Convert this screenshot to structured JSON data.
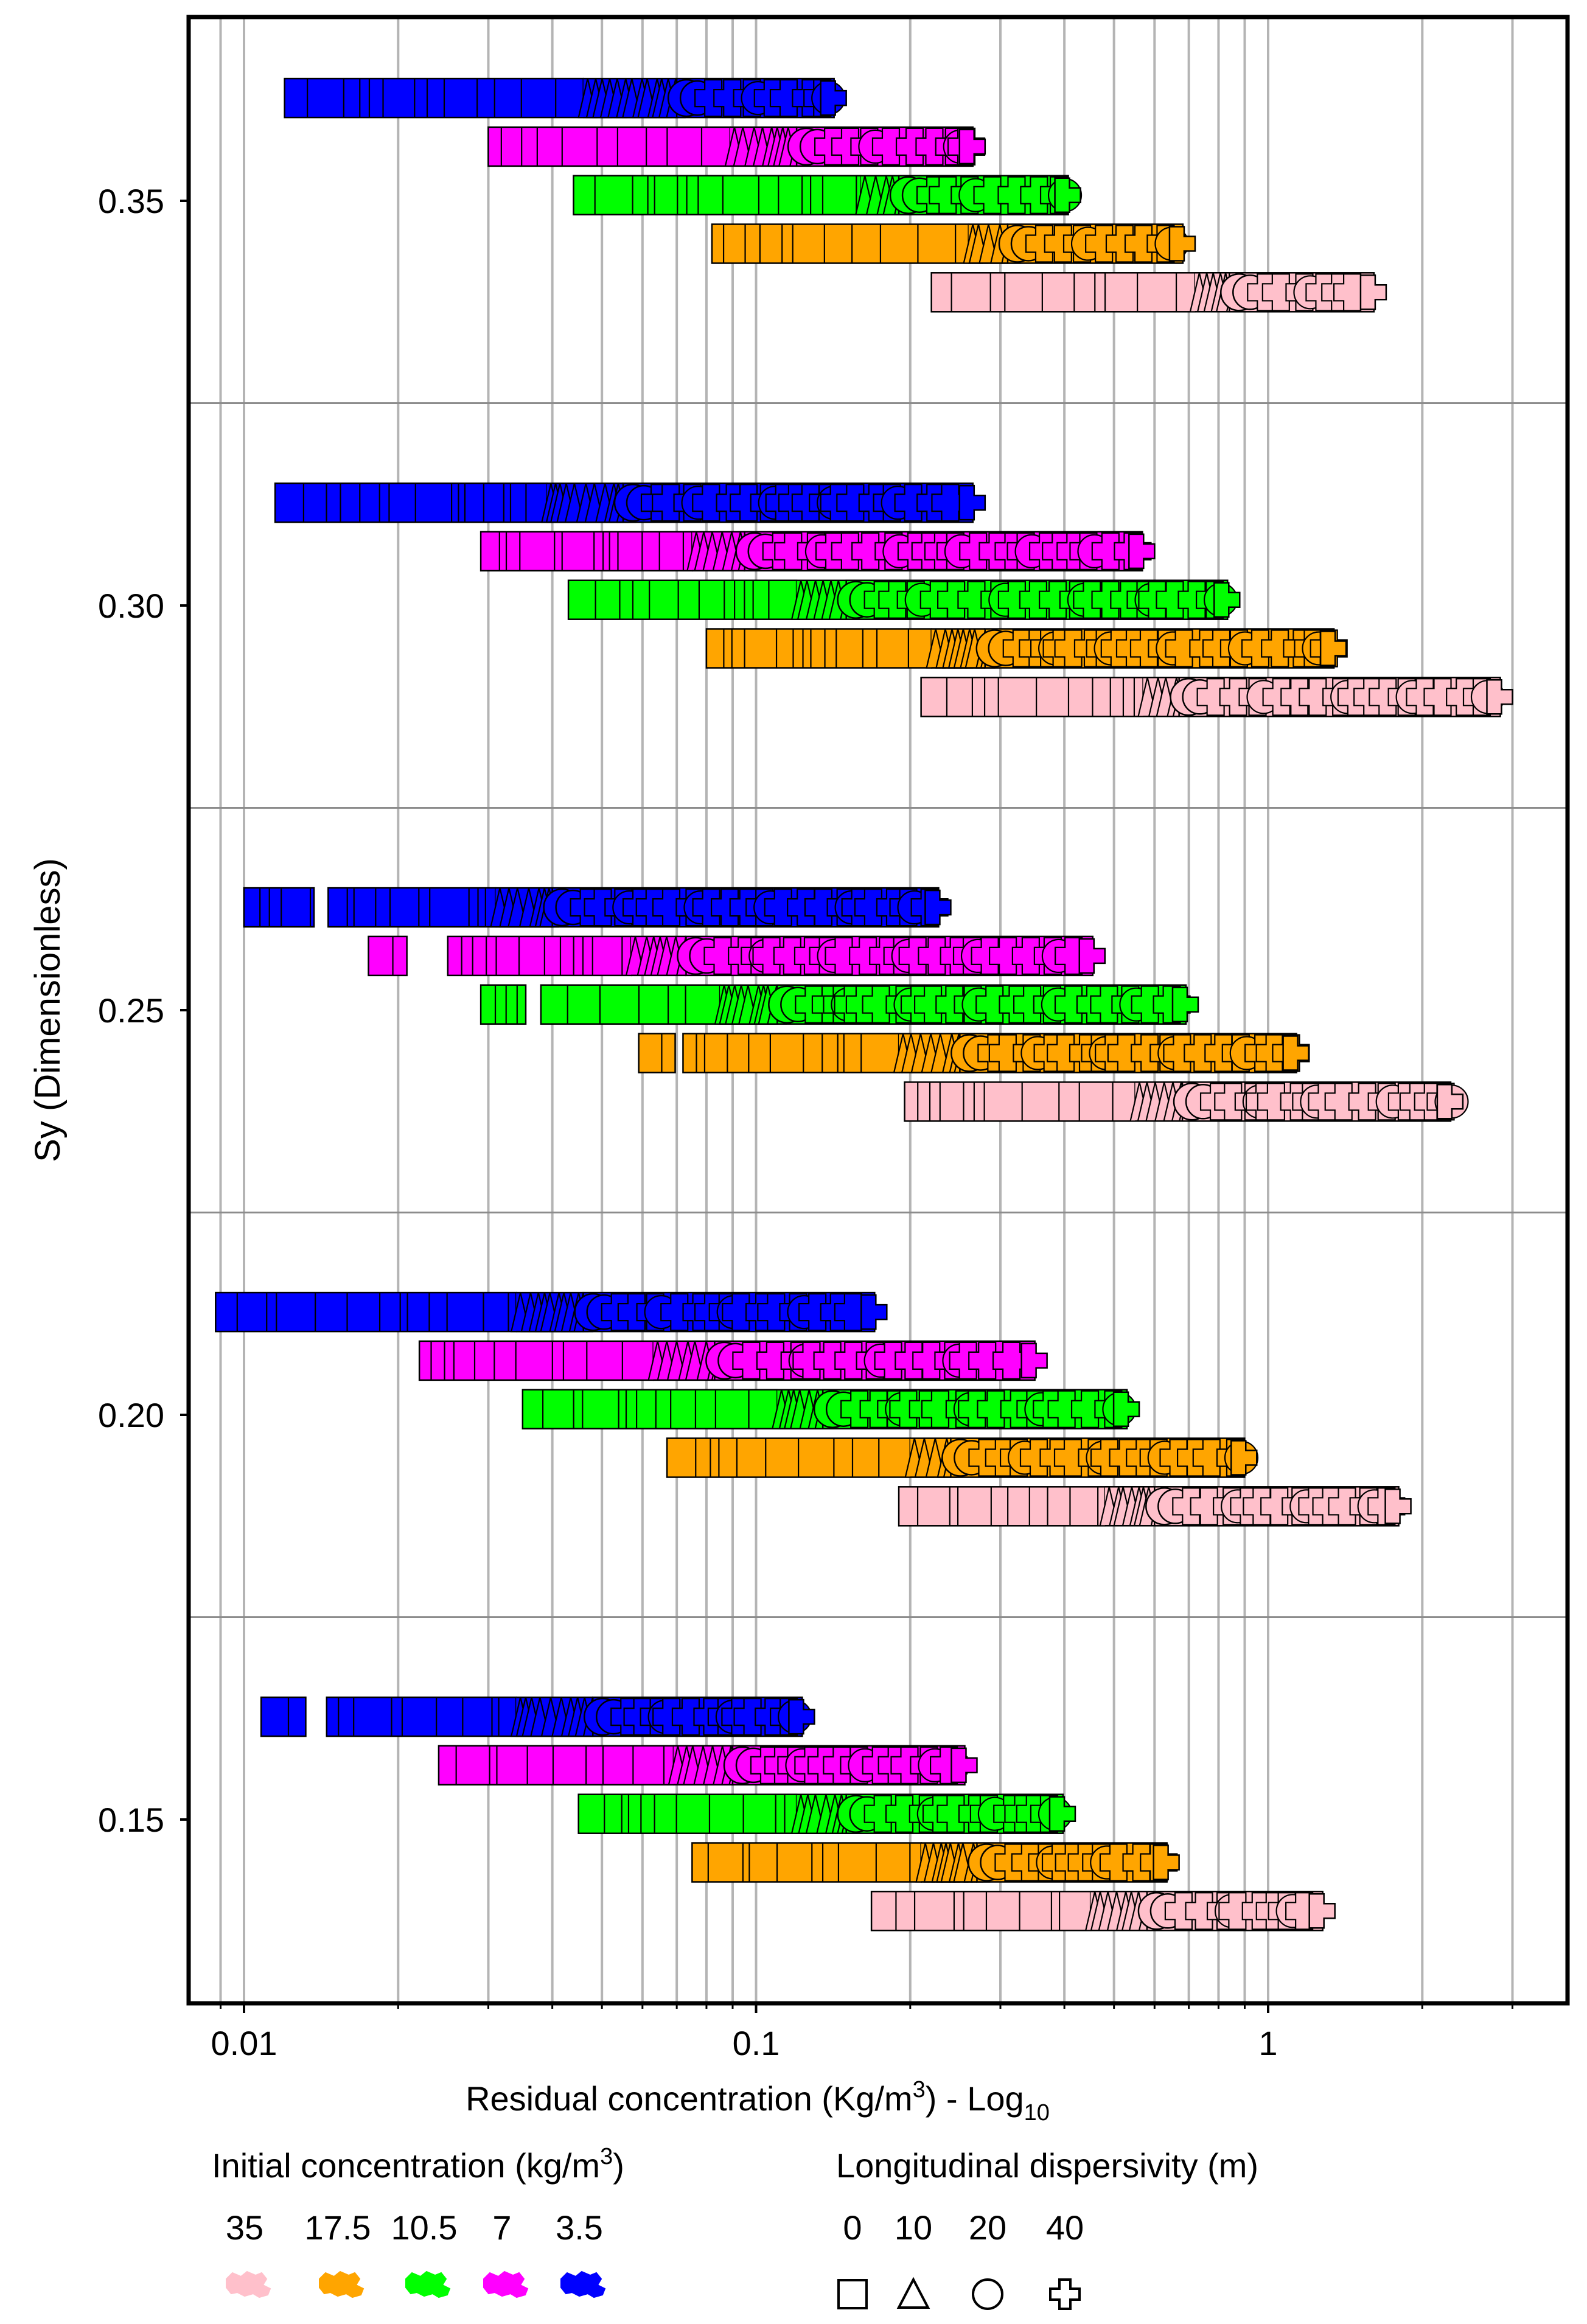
{
  "chart_data": {
    "type": "scatter",
    "title": "",
    "xlabel": "Residual concentration (Kg/m",
    "xlabel_sup": "3",
    "xlabel_tail": ") - Log",
    "xlabel_sub": "10",
    "ylabel": "Sy (Dimensionless)",
    "xscale": "log",
    "xlim": [
      0.0085,
      3.6
    ],
    "ylim": [
      0.125,
      0.375
    ],
    "x_ticks": [
      {
        "value": 0.01,
        "label": "0.01"
      },
      {
        "value": 0.1,
        "label": "0.1"
      },
      {
        "value": 1,
        "label": "1"
      }
    ],
    "y_ticks": [
      {
        "value": 0.15,
        "label": "0.15"
      },
      {
        "value": 0.2,
        "label": "0.20"
      },
      {
        "value": 0.25,
        "label": "0.25"
      },
      {
        "value": 0.3,
        "label": "0.30"
      },
      {
        "value": 0.35,
        "label": "0.35"
      }
    ],
    "y_group_separators": [
      0.175,
      0.225,
      0.275,
      0.325
    ],
    "grid": "vertical log gridlines, horizontal separators between Sy groups",
    "series": [
      {
        "name": "35",
        "color": "#FFC0CB"
      },
      {
        "name": "17.5",
        "color": "#FFA500"
      },
      {
        "name": "10.5",
        "color": "#00FF00"
      },
      {
        "name": "7",
        "color": "#FF00FF"
      },
      {
        "name": "3.5",
        "color": "#0000FF"
      }
    ],
    "dispersivity_markers": [
      {
        "value": "0",
        "marker": "square"
      },
      {
        "value": "10",
        "marker": "triangle"
      },
      {
        "value": "20",
        "marker": "circle"
      },
      {
        "value": "40",
        "marker": "cross"
      }
    ],
    "bands": [
      {
        "sy": 0.35,
        "series": "3.5",
        "y": 0.3627,
        "min": 0.012,
        "tri": 0.046,
        "circ": 0.07,
        "max": 0.15,
        "gap": null
      },
      {
        "sy": 0.35,
        "series": "7",
        "y": 0.3567,
        "min": 0.03,
        "tri": 0.089,
        "circ": 0.12,
        "max": 0.28,
        "gap": null
      },
      {
        "sy": 0.35,
        "series": "10.5",
        "y": 0.3507,
        "min": 0.044,
        "tri": 0.16,
        "circ": 0.19,
        "max": 0.43,
        "gap": null
      },
      {
        "sy": 0.35,
        "series": "17.5",
        "y": 0.3447,
        "min": 0.082,
        "tri": 0.26,
        "circ": 0.31,
        "max": 0.72,
        "gap": null
      },
      {
        "sy": 0.35,
        "series": "35",
        "y": 0.3387,
        "min": 0.22,
        "tri": 0.72,
        "circ": 0.84,
        "max": 1.7,
        "gap": null
      },
      {
        "sy": 0.3,
        "series": "3.5",
        "y": 0.3127,
        "min": 0.0115,
        "tri": 0.039,
        "circ": 0.055,
        "max": 0.28,
        "gap": null
      },
      {
        "sy": 0.3,
        "series": "7",
        "y": 0.3067,
        "min": 0.029,
        "tri": 0.075,
        "circ": 0.095,
        "max": 0.6,
        "gap": null
      },
      {
        "sy": 0.3,
        "series": "10.5",
        "y": 0.3007,
        "min": 0.043,
        "tri": 0.12,
        "circ": 0.15,
        "max": 0.88,
        "gap": null
      },
      {
        "sy": 0.3,
        "series": "17.5",
        "y": 0.2947,
        "min": 0.08,
        "tri": 0.22,
        "circ": 0.28,
        "max": 1.42,
        "gap": null
      },
      {
        "sy": 0.3,
        "series": "35",
        "y": 0.2887,
        "min": 0.21,
        "tri": 0.57,
        "circ": 0.67,
        "max": 3.0,
        "gap": null
      },
      {
        "sy": 0.25,
        "series": "3.5",
        "y": 0.2627,
        "min": 0.01,
        "tri": 0.031,
        "circ": 0.04,
        "max": 0.24,
        "gap": [
          0.0137,
          0.0146
        ]
      },
      {
        "sy": 0.25,
        "series": "7",
        "y": 0.2567,
        "min": 0.0175,
        "tri": 0.057,
        "circ": 0.073,
        "max": 0.48,
        "gap": [
          0.0208,
          0.025
        ]
      },
      {
        "sy": 0.25,
        "series": "10.5",
        "y": 0.2507,
        "min": 0.029,
        "tri": 0.085,
        "circ": 0.11,
        "max": 0.73,
        "gap": [
          0.0355,
          0.038
        ]
      },
      {
        "sy": 0.25,
        "series": "17.5",
        "y": 0.2447,
        "min": 0.059,
        "tri": 0.19,
        "circ": 0.25,
        "max": 1.2,
        "gap": [
          0.0695,
          0.072
        ]
      },
      {
        "sy": 0.25,
        "series": "35",
        "y": 0.2387,
        "min": 0.195,
        "tri": 0.55,
        "circ": 0.68,
        "max": 2.4,
        "gap": null
      },
      {
        "sy": 0.2,
        "series": "3.5",
        "y": 0.2127,
        "min": 0.0088,
        "tri": 0.034,
        "circ": 0.046,
        "max": 0.18,
        "gap": null
      },
      {
        "sy": 0.2,
        "series": "7",
        "y": 0.2067,
        "min": 0.022,
        "tri": 0.063,
        "circ": 0.083,
        "max": 0.37,
        "gap": null
      },
      {
        "sy": 0.2,
        "series": "10.5",
        "y": 0.2007,
        "min": 0.035,
        "tri": 0.11,
        "circ": 0.135,
        "max": 0.56,
        "gap": null
      },
      {
        "sy": 0.2,
        "series": "17.5",
        "y": 0.1947,
        "min": 0.067,
        "tri": 0.2,
        "circ": 0.24,
        "max": 0.95,
        "gap": null
      },
      {
        "sy": 0.2,
        "series": "35",
        "y": 0.1887,
        "min": 0.19,
        "tri": 0.48,
        "circ": 0.6,
        "max": 1.9,
        "gap": null
      },
      {
        "sy": 0.15,
        "series": "3.5",
        "y": 0.1627,
        "min": 0.0108,
        "tri": 0.034,
        "circ": 0.048,
        "max": 0.13,
        "gap": [
          0.0132,
          0.0145
        ]
      },
      {
        "sy": 0.15,
        "series": "7",
        "y": 0.1567,
        "min": 0.024,
        "tri": 0.069,
        "circ": 0.09,
        "max": 0.27,
        "gap": null
      },
      {
        "sy": 0.15,
        "series": "10.5",
        "y": 0.1507,
        "min": 0.045,
        "tri": 0.12,
        "circ": 0.15,
        "max": 0.42,
        "gap": null
      },
      {
        "sy": 0.15,
        "series": "17.5",
        "y": 0.1447,
        "min": 0.075,
        "tri": 0.21,
        "circ": 0.27,
        "max": 0.67,
        "gap": null
      },
      {
        "sy": 0.15,
        "series": "35",
        "y": 0.1387,
        "min": 0.168,
        "tri": 0.45,
        "circ": 0.58,
        "max": 1.35,
        "gap": null
      }
    ]
  },
  "legend": {
    "concentration_title": "Initial concentration (kg/m",
    "concentration_title_sup": "3",
    "concentration_title_tail": ")",
    "dispersivity_title": "Longitudinal dispersivity (m)"
  }
}
